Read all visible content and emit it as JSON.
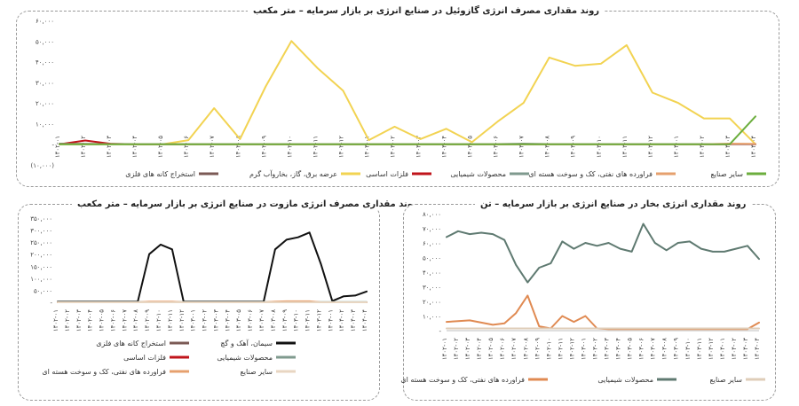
{
  "chart_data": [
    {
      "type": "line",
      "title": "روند مقداری مصرف انرژی گازوئیل در صنایع انرژی بر بازار سرمایه – متر مکعب",
      "categories": [
        "۱۴۰۲-۰۱",
        "۱۴۰۲-۰۲",
        "۱۴۰۲-۰۳",
        "۱۴۰۲-۰۴",
        "۱۴۰۲-۰۵",
        "۱۴۰۲-۰۶",
        "۱۴۰۲-۰۷",
        "۱۴۰۲-۰۸",
        "۱۴۰۲-۰۹",
        "۱۴۰۲-۱۰",
        "۱۴۰۲-۱۱",
        "۱۴۰۲-۱۲",
        "۱۴۰۳-۰۱",
        "۱۴۰۳-۰۲",
        "۱۴۰۳-۰۳",
        "۱۴۰۳-۰۴",
        "۱۴۰۳-۰۵",
        "۱۴۰۳-۰۶",
        "۱۴۰۳-۰۷",
        "۱۴۰۳-۰۸",
        "۱۴۰۳-۰۹",
        "۱۴۰۳-۱۰",
        "۱۴۰۳-۱۱",
        "۱۴۰۳-۱۲",
        "۱۴۰۴-۰۱",
        "۱۴۰۴-۰۲",
        "۱۴۰۴-۰۳",
        "۱۴۰۴-۰۴"
      ],
      "y_ticks": [
        "(۱۰,۰۰۰)",
        "-",
        "۱۰,۰۰۰",
        "۲۰,۰۰۰",
        "۳۰,۰۰۰",
        "۴۰,۰۰۰",
        "۵۰,۰۰۰",
        "۶۰,۰۰۰"
      ],
      "ylim": [
        -10000,
        60000
      ],
      "series": [
        {
          "name": "استخراج کانه های فلزی",
          "color": "#7b5a55",
          "values": [
            300,
            200,
            150,
            100,
            100,
            100,
            100,
            100,
            100,
            100,
            100,
            100,
            100,
            100,
            100,
            100,
            100,
            100,
            100,
            100,
            100,
            100,
            100,
            100,
            100,
            100,
            100,
            100
          ]
        },
        {
          "name": "عرضه برق، گاز، بخاروآب گرم",
          "color": "#f2d352",
          "values": [
            0,
            0,
            0,
            0,
            0,
            2000,
            17500,
            2500,
            28000,
            50000,
            37000,
            26000,
            2000,
            8500,
            2500,
            7500,
            1000,
            11000,
            20000,
            42000,
            38000,
            39000,
            48000,
            25000,
            20000,
            12500,
            12500,
            0
          ]
        },
        {
          "name": "فلزات اساسی",
          "color": "#c0141b",
          "values": [
            0,
            1800,
            200,
            0,
            0,
            0,
            0,
            0,
            0,
            0,
            0,
            0,
            0,
            0,
            0,
            0,
            0,
            0,
            0,
            0,
            0,
            0,
            0,
            0,
            0,
            0,
            0,
            0
          ]
        },
        {
          "name": "محصولات شیمیایی",
          "color": "#7f9a8e",
          "values": [
            200,
            100,
            100,
            100,
            100,
            100,
            100,
            100,
            100,
            100,
            100,
            100,
            100,
            100,
            100,
            100,
            100,
            100,
            300,
            100,
            100,
            100,
            100,
            100,
            100,
            100,
            100,
            100
          ]
        },
        {
          "name": "فراورده های نفتی، کک و سوخت هسته ای",
          "color": "#e6a06e",
          "values": [
            0,
            0,
            0,
            0,
            0,
            0,
            0,
            0,
            0,
            0,
            0,
            0,
            0,
            0,
            0,
            0,
            0,
            0,
            0,
            0,
            0,
            0,
            0,
            0,
            0,
            0,
            300,
            200
          ]
        },
        {
          "name": "سایر صنایع",
          "color": "#6cae3e",
          "values": [
            0,
            0,
            0,
            0,
            0,
            0,
            0,
            0,
            0,
            0,
            0,
            0,
            0,
            0,
            0,
            0,
            0,
            0,
            0,
            0,
            0,
            0,
            0,
            0,
            0,
            0,
            0,
            13500
          ]
        }
      ]
    },
    {
      "type": "line",
      "title": "روند مقداری مصرف انرژی مازوت در صنایع انرژی بر بازار سرمایه – متر مکعب",
      "categories": [
        "۱۴۰۲-۰۱",
        "۱۴۰۲-۰۲",
        "۱۴۰۲-۰۳",
        "۱۴۰۲-۰۴",
        "۱۴۰۲-۰۵",
        "۱۴۰۲-۰۶",
        "۱۴۰۲-۰۷",
        "۱۴۰۲-۰۸",
        "۱۴۰۲-۰۹",
        "۱۴۰۲-۱۰",
        "۱۴۰۲-۱۱",
        "۱۴۰۲-۱۲",
        "۱۴۰۳-۰۱",
        "۱۴۰۳-۰۲",
        "۱۴۰۳-۰۳",
        "۱۴۰۳-۰۴",
        "۱۴۰۳-۰۵",
        "۱۴۰۳-۰۶",
        "۱۴۰۳-۰۷",
        "۱۴۰۳-۰۸",
        "۱۴۰۳-۰۹",
        "۱۴۰۳-۱۰",
        "۱۴۰۳-۱۱",
        "۱۴۰۳-۱۲",
        "۱۴۰۴-۰۱",
        "۱۴۰۴-۰۲",
        "۱۴۰۴-۰۳",
        "۱۴۰۴-۰۴"
      ],
      "y_ticks": [
        "-",
        "۵۰,۰۰۰",
        "۱۰۰,۰۰۰",
        "۱۵۰,۰۰۰",
        "۲۰۰,۰۰۰",
        "۲۵۰,۰۰۰",
        "۳۰۰,۰۰۰",
        "۳۵۰,۰۰۰"
      ],
      "ylim": [
        0,
        350000
      ],
      "series": [
        {
          "name": "استخراج کانه های فلزی",
          "color": "#7b5a55",
          "values": [
            0,
            0,
            0,
            0,
            0,
            0,
            0,
            0,
            0,
            0,
            0,
            0,
            0,
            0,
            0,
            0,
            0,
            0,
            0,
            0,
            0,
            0,
            0,
            0,
            0,
            0,
            0,
            0
          ]
        },
        {
          "name": "سیمان، آهک و گچ",
          "color": "#111111",
          "values": [
            3000,
            3000,
            3000,
            3000,
            3000,
            3000,
            3000,
            3000,
            200000,
            240000,
            220000,
            3000,
            3000,
            3000,
            3000,
            3000,
            3000,
            3000,
            3000,
            220000,
            260000,
            270000,
            290000,
            160000,
            5000,
            25000,
            28000,
            45000
          ]
        },
        {
          "name": "فلزات اساسی",
          "color": "#c0141b",
          "values": [
            0,
            0,
            0,
            0,
            0,
            0,
            0,
            0,
            0,
            0,
            0,
            0,
            0,
            0,
            0,
            0,
            0,
            0,
            0,
            0,
            0,
            0,
            0,
            0,
            0,
            0,
            0,
            0
          ]
        },
        {
          "name": "محصولات شیمیایی",
          "color": "#7f9a8e",
          "values": [
            1000,
            1000,
            1000,
            1000,
            1000,
            1000,
            1000,
            1000,
            1000,
            1000,
            1000,
            1000,
            1000,
            1000,
            1000,
            1000,
            1000,
            1000,
            1000,
            1000,
            1000,
            1000,
            1000,
            1000,
            1000,
            1000,
            1000,
            1000
          ]
        },
        {
          "name": "فراورده های نفتی، کک و سوخت هسته ای",
          "color": "#e6a06e",
          "values": [
            0,
            0,
            0,
            0,
            0,
            0,
            0,
            0,
            3000,
            3000,
            3000,
            0,
            0,
            0,
            0,
            0,
            0,
            0,
            0,
            3000,
            4000,
            4000,
            4000,
            0,
            0,
            0,
            0,
            0
          ]
        },
        {
          "name": "سایر صنایع",
          "color": "#e8d6c2",
          "values": [
            0,
            0,
            0,
            0,
            0,
            0,
            0,
            0,
            0,
            0,
            0,
            0,
            0,
            0,
            0,
            0,
            0,
            0,
            0,
            0,
            0,
            0,
            0,
            0,
            0,
            0,
            0,
            0
          ]
        }
      ]
    },
    {
      "type": "line",
      "title": "روند مقداری انرژی بخار در صنایع انرژی بر بازار سرمایه – تن",
      "categories": [
        "۱۴۰۲-۰۱",
        "۱۴۰۲-۰۲",
        "۱۴۰۲-۰۳",
        "۱۴۰۲-۰۴",
        "۱۴۰۲-۰۵",
        "۱۴۰۲-۰۶",
        "۱۴۰۲-۰۷",
        "۱۴۰۲-۰۸",
        "۱۴۰۲-۰۹",
        "۱۴۰۲-۱۰",
        "۱۴۰۲-۱۱",
        "۱۴۰۲-۱۲",
        "۱۴۰۳-۰۱",
        "۱۴۰۳-۰۲",
        "۱۴۰۳-۰۳",
        "۱۴۰۳-۰۴",
        "۱۴۰۳-۰۵",
        "۱۴۰۳-۰۶",
        "۱۴۰۳-۰۷",
        "۱۴۰۳-۰۸",
        "۱۴۰۳-۰۹",
        "۱۴۰۳-۱۰",
        "۱۴۰۳-۱۱",
        "۱۴۰۳-۱۲",
        "۱۴۰۴-۰۱",
        "۱۴۰۴-۰۲",
        "۱۴۰۴-۰۳",
        "۱۴۰۴-۰۴"
      ],
      "y_ticks": [
        "-",
        "۱۰,۰۰۰",
        "۲۰,۰۰۰",
        "۳۰,۰۰۰",
        "۴۰,۰۰۰",
        "۵۰,۰۰۰",
        "۶۰,۰۰۰",
        "۷۰,۰۰۰",
        "۸۰,۰۰۰"
      ],
      "ylim": [
        0,
        80000
      ],
      "series": [
        {
          "name": "فراورده های نفتی، کک و سوخت هسته ای",
          "color": "#e08a52",
          "values": [
            6000,
            6500,
            7000,
            5500,
            4000,
            5000,
            12000,
            24000,
            3000,
            1500,
            10000,
            6000,
            10000,
            1500,
            1000,
            1000,
            1000,
            1000,
            1000,
            1000,
            1000,
            1000,
            1000,
            1000,
            1000,
            1000,
            1000,
            5500
          ]
        },
        {
          "name": "محصولات شیمیایی",
          "color": "#5f7a71",
          "values": [
            64000,
            68000,
            66000,
            67000,
            66000,
            62000,
            45000,
            33000,
            43000,
            46000,
            61000,
            56000,
            60000,
            58000,
            60000,
            56000,
            54000,
            73000,
            60000,
            55000,
            60000,
            61000,
            56000,
            54000,
            54000,
            56000,
            58000,
            49000
          ]
        },
        {
          "name": "سایر صنایع",
          "color": "#dfcdb8",
          "values": [
            1500,
            1500,
            1500,
            1500,
            1500,
            1500,
            1500,
            1500,
            1500,
            1500,
            1500,
            1500,
            1500,
            1500,
            1500,
            1500,
            1500,
            1500,
            1500,
            1500,
            1500,
            1500,
            1500,
            1500,
            1500,
            1500,
            1500,
            1500
          ]
        }
      ]
    }
  ]
}
